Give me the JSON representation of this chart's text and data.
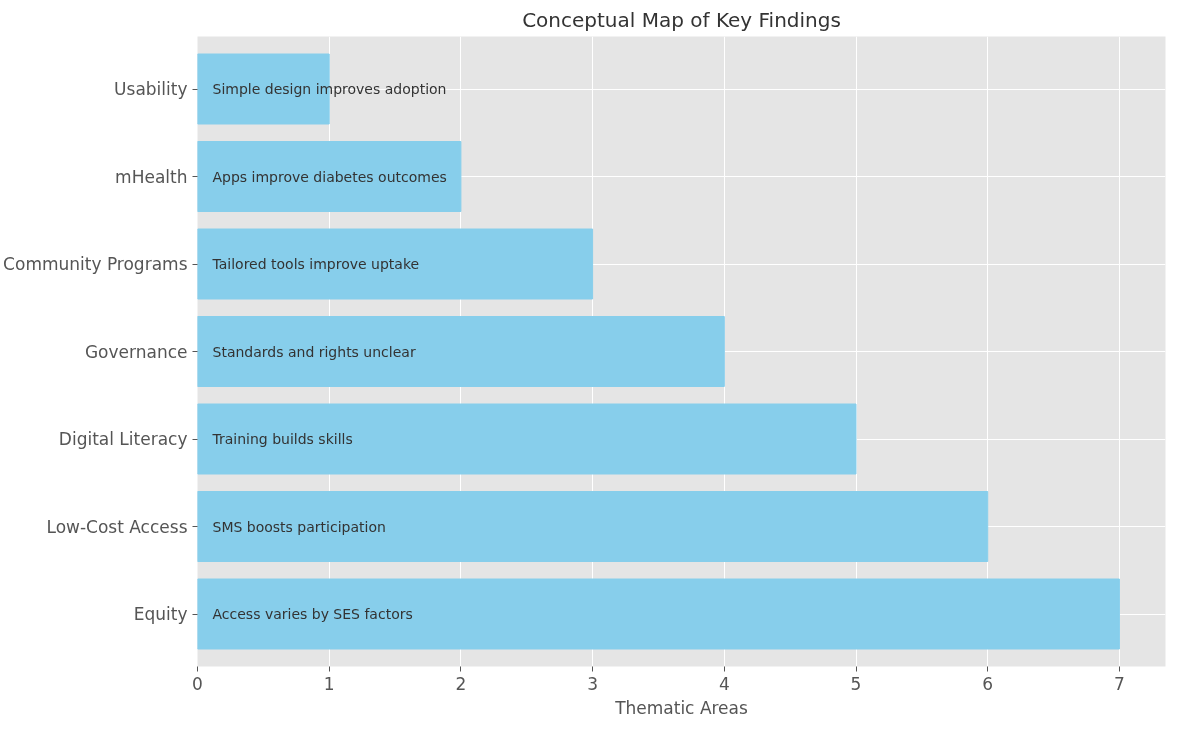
{
  "chart_data": {
    "type": "bar",
    "orientation": "horizontal",
    "title": "Conceptual Map of Key Findings",
    "xlabel": "Thematic Areas",
    "categories": [
      "Usability",
      "mHealth",
      "Community Programs",
      "Governance",
      "Digital Literacy",
      "Low-Cost Access",
      "Equity"
    ],
    "values": [
      1,
      2,
      3,
      4,
      5,
      6,
      7
    ],
    "color": "#87ceeb",
    "xlim": [
      0,
      7.35
    ],
    "xticks": [
      0,
      1,
      2,
      3,
      4,
      5,
      6,
      7
    ],
    "grid": true,
    "annotations": [
      "Simple design improves adoption",
      "Apps improve diabetes outcomes",
      "Tailored tools improve uptake",
      "Standards and rights unclear",
      "Training builds skills",
      "SMS boosts participation",
      "Access varies by SES factors"
    ]
  }
}
